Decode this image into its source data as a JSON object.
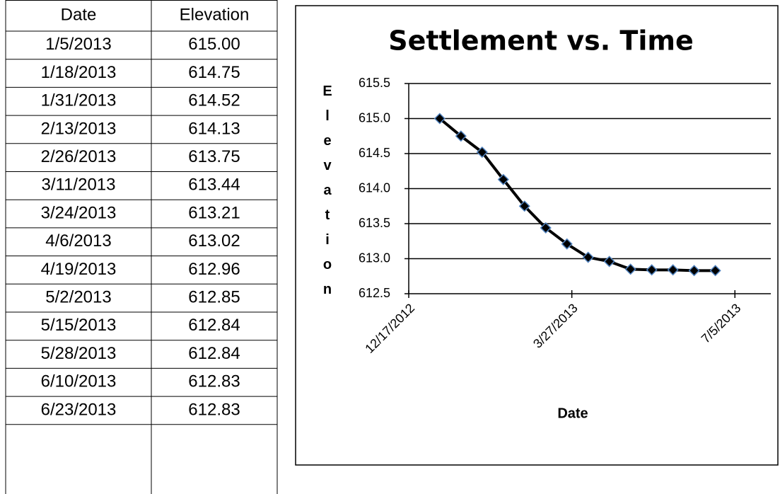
{
  "table": {
    "header": [
      "Date",
      "Elevation"
    ],
    "rows": [
      [
        "1/5/2013",
        "615.00"
      ],
      [
        "1/18/2013",
        "614.75"
      ],
      [
        "1/31/2013",
        "614.52"
      ],
      [
        "2/13/2013",
        "614.13"
      ],
      [
        "2/26/2013",
        "613.75"
      ],
      [
        "3/11/2013",
        "613.44"
      ],
      [
        "3/24/2013",
        "613.21"
      ],
      [
        "4/6/2013",
        "613.02"
      ],
      [
        "4/19/2013",
        "612.96"
      ],
      [
        "5/2/2013",
        "612.85"
      ],
      [
        "5/15/2013",
        "612.84"
      ],
      [
        "5/28/2013",
        "612.84"
      ],
      [
        "6/10/2013",
        "612.83"
      ],
      [
        "6/23/2013",
        "612.83"
      ]
    ]
  },
  "chart_data": {
    "type": "line",
    "title": "Settlement vs. Time",
    "x_label": "Date",
    "y_label": "Elevation",
    "x": [
      "1/5/2013",
      "1/18/2013",
      "1/31/2013",
      "2/13/2013",
      "2/26/2013",
      "3/11/2013",
      "3/24/2013",
      "4/6/2013",
      "4/19/2013",
      "5/2/2013",
      "5/15/2013",
      "5/28/2013",
      "6/10/2013",
      "6/23/2013"
    ],
    "series": [
      {
        "name": "Elevation",
        "color": "#000000",
        "marker_edge": "#4f81bd",
        "values": [
          615.0,
          614.75,
          614.52,
          614.13,
          613.75,
          613.44,
          613.21,
          613.02,
          612.96,
          612.85,
          612.84,
          612.84,
          612.83,
          612.83
        ]
      }
    ],
    "xlim": [
      "12/17/2012",
      "7/27/2013"
    ],
    "xticks": [
      "12/17/2012",
      "3/27/2013",
      "7/5/2013"
    ],
    "ylim": [
      612.5,
      615.5
    ],
    "yticks": [
      612.5,
      {
        "value": 613,
        "label": "613.0"
      },
      613.5,
      {
        "value": 614,
        "label": "614.0"
      },
      614.5,
      {
        "value": 615,
        "label": "615.0"
      },
      615.5
    ],
    "grid": true
  }
}
